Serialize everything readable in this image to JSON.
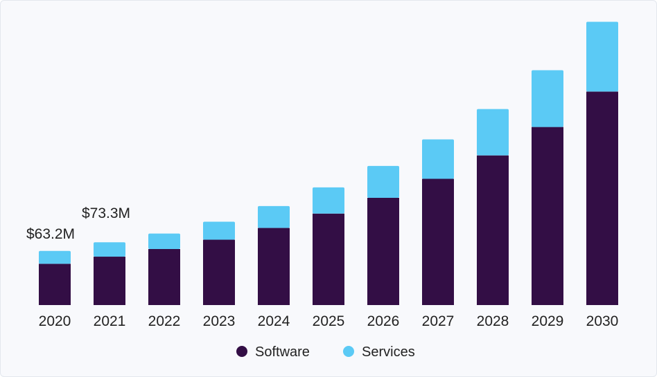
{
  "chart_data": {
    "type": "bar",
    "stacked": true,
    "categories": [
      "2020",
      "2021",
      "2022",
      "2023",
      "2024",
      "2025",
      "2026",
      "2027",
      "2028",
      "2029",
      "2030"
    ],
    "series": [
      {
        "name": "Software",
        "color": "#330e45",
        "values": [
          48.2,
          56.5,
          65.4,
          76.3,
          90.0,
          106.8,
          125.2,
          147.4,
          174.7,
          207.9,
          249.2
        ]
      },
      {
        "name": "Services",
        "color": "#5bcaf5",
        "values": [
          15.0,
          16.8,
          18.1,
          21.0,
          25.6,
          30.6,
          37.2,
          46.0,
          54.2,
          66.3,
          81.5
        ]
      }
    ],
    "annotations": [
      {
        "category": "2020",
        "text": "$63.2M"
      },
      {
        "category": "2021",
        "text": "$73.3M"
      }
    ],
    "ylim": [
      0,
      340
    ],
    "grid": false,
    "legend_position": "bottom-center"
  }
}
